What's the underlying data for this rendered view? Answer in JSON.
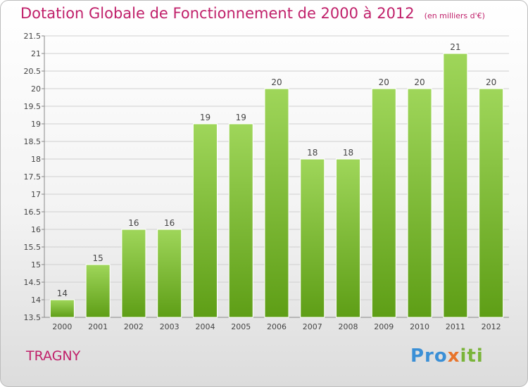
{
  "header": {
    "title": "Dotation Globale de Fonctionnement de 2000 à 2012",
    "unit": "(en milliers d'€)"
  },
  "footer": {
    "commune": "TRAGNY",
    "logo": {
      "part1": "Pro",
      "part2": "x",
      "part3": "iti"
    }
  },
  "colors": {
    "title": "#c0206a",
    "bar_light": "#9fd65a",
    "bar_dark": "#5e9e16",
    "grid": "#cfcfcf"
  },
  "chart_data": {
    "type": "bar",
    "title": "Dotation Globale de Fonctionnement de 2000 à 2012",
    "subtitle": "(en milliers d'€)",
    "categories": [
      "2000",
      "2001",
      "2002",
      "2003",
      "2004",
      "2005",
      "2006",
      "2007",
      "2008",
      "2009",
      "2010",
      "2011",
      "2012"
    ],
    "values": [
      14,
      15,
      16,
      16,
      19,
      19,
      20,
      18,
      18,
      20,
      20,
      21,
      20
    ],
    "ylim": [
      13.5,
      21.5
    ],
    "yticks": [
      13.5,
      14,
      14.5,
      15,
      15.5,
      16,
      16.5,
      17,
      17.5,
      18,
      18.5,
      19,
      19.5,
      20,
      20.5,
      21,
      21.5
    ],
    "grid": true,
    "xlabel": "",
    "ylabel": ""
  }
}
